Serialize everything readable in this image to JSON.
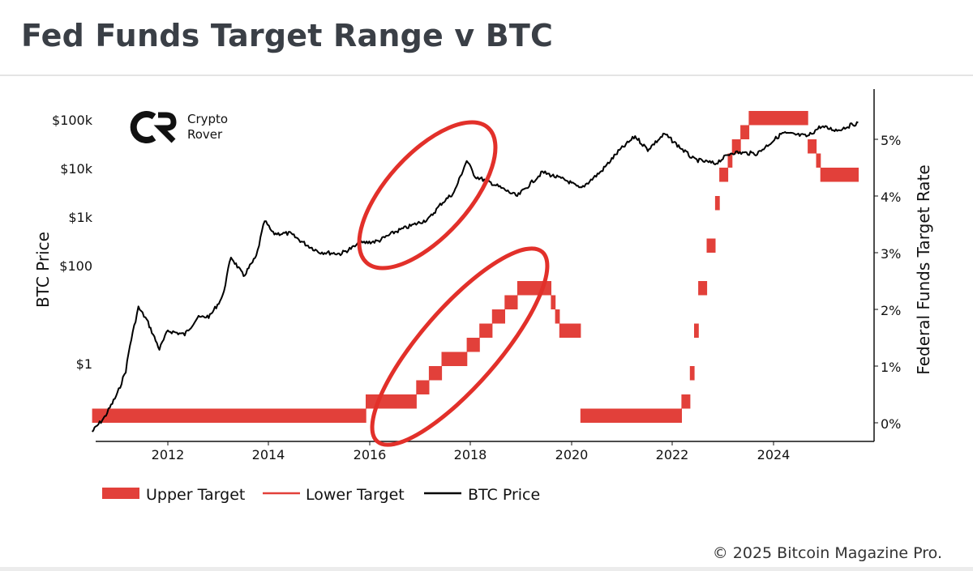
{
  "title": "Fed Funds Target Range v BTC",
  "copyright": "© 2025 Bitcoin Magazine Pro.",
  "logo": {
    "line1": "Crypto",
    "line2": "Rover",
    "icon": "crypto-rover-logo"
  },
  "colors": {
    "fed": "#e2403a",
    "btc": "#000000",
    "highlight": "#e2302a"
  },
  "chart_data": {
    "type": "line",
    "title": "Fed Funds Target Range v BTC",
    "xlabel": "",
    "x_ticks": [
      "2012",
      "2014",
      "2016",
      "2018",
      "2020",
      "2022",
      "2024"
    ],
    "left_axis": {
      "label": "BTC Price",
      "scale": "log",
      "ticks": [
        "$1",
        "$100",
        "$1k",
        "$10k",
        "$100k"
      ]
    },
    "right_axis": {
      "label": "Federal Funds Target Rate",
      "ylim": [
        0,
        5.5
      ],
      "ticks": [
        "0%",
        "1%",
        "2%",
        "3%",
        "4%",
        "5%"
      ]
    },
    "legend": [
      "Upper Target",
      "Lower Target",
      "BTC Price"
    ],
    "legend_position": "bottom",
    "series": [
      {
        "name": "Upper Target",
        "step": true,
        "points": [
          [
            "2010-07",
            0.25
          ],
          [
            "2015-12",
            0.5
          ],
          [
            "2016-12",
            0.75
          ],
          [
            "2017-03",
            1.0
          ],
          [
            "2017-06",
            1.25
          ],
          [
            "2017-12",
            1.5
          ],
          [
            "2018-03",
            1.75
          ],
          [
            "2018-06",
            2.0
          ],
          [
            "2018-09",
            2.25
          ],
          [
            "2018-12",
            2.5
          ],
          [
            "2019-08",
            2.25
          ],
          [
            "2019-09",
            2.0
          ],
          [
            "2019-10",
            1.75
          ],
          [
            "2020-03",
            0.25
          ],
          [
            "2022-03",
            0.5
          ],
          [
            "2022-05",
            1.0
          ],
          [
            "2022-06",
            1.75
          ],
          [
            "2022-07",
            2.5
          ],
          [
            "2022-09",
            3.25
          ],
          [
            "2022-11",
            4.0
          ],
          [
            "2022-12",
            4.5
          ],
          [
            "2023-02",
            4.75
          ],
          [
            "2023-03",
            5.0
          ],
          [
            "2023-05",
            5.25
          ],
          [
            "2023-07",
            5.5
          ],
          [
            "2024-09",
            5.0
          ],
          [
            "2024-11",
            4.75
          ],
          [
            "2024-12",
            4.5
          ],
          [
            "2025-09",
            4.5
          ]
        ]
      },
      {
        "name": "Lower Target",
        "step": true,
        "points": [
          [
            "2010-07",
            0.0
          ],
          [
            "2015-12",
            0.25
          ],
          [
            "2016-12",
            0.5
          ],
          [
            "2017-03",
            0.75
          ],
          [
            "2017-06",
            1.0
          ],
          [
            "2017-12",
            1.25
          ],
          [
            "2018-03",
            1.5
          ],
          [
            "2018-06",
            1.75
          ],
          [
            "2018-09",
            2.0
          ],
          [
            "2018-12",
            2.25
          ],
          [
            "2019-08",
            2.0
          ],
          [
            "2019-09",
            1.75
          ],
          [
            "2019-10",
            1.5
          ],
          [
            "2020-03",
            0.0
          ],
          [
            "2022-03",
            0.25
          ],
          [
            "2022-05",
            0.75
          ],
          [
            "2022-06",
            1.5
          ],
          [
            "2022-07",
            2.25
          ],
          [
            "2022-09",
            3.0
          ],
          [
            "2022-11",
            3.75
          ],
          [
            "2022-12",
            4.25
          ],
          [
            "2023-02",
            4.5
          ],
          [
            "2023-03",
            4.75
          ],
          [
            "2023-05",
            5.0
          ],
          [
            "2023-07",
            5.25
          ],
          [
            "2024-09",
            4.75
          ],
          [
            "2024-11",
            4.5
          ],
          [
            "2024-12",
            4.25
          ],
          [
            "2025-09",
            4.25
          ]
        ]
      },
      {
        "name": "BTC Price",
        "points": [
          [
            "2010-07",
            0.05
          ],
          [
            "2010-10",
            0.1
          ],
          [
            "2011-01",
            0.3
          ],
          [
            "2011-03",
            0.9
          ],
          [
            "2011-04",
            3
          ],
          [
            "2011-06",
            18
          ],
          [
            "2011-08",
            10
          ],
          [
            "2011-11",
            2.5
          ],
          [
            "2012-01",
            6
          ],
          [
            "2012-05",
            5
          ],
          [
            "2012-08",
            11
          ],
          [
            "2012-11",
            12
          ],
          [
            "2013-02",
            30
          ],
          [
            "2013-04",
            200
          ],
          [
            "2013-07",
            80
          ],
          [
            "2013-10",
            200
          ],
          [
            "2013-12",
            1100
          ],
          [
            "2014-02",
            600
          ],
          [
            "2014-06",
            600
          ],
          [
            "2014-10",
            350
          ],
          [
            "2015-01",
            250
          ],
          [
            "2015-06",
            230
          ],
          [
            "2015-11",
            380
          ],
          [
            "2016-03",
            420
          ],
          [
            "2016-07",
            650
          ],
          [
            "2016-12",
            950
          ],
          [
            "2017-03",
            1200
          ],
          [
            "2017-06",
            2500
          ],
          [
            "2017-09",
            4200
          ],
          [
            "2017-12",
            19000
          ],
          [
            "2018-02",
            9000
          ],
          [
            "2018-06",
            6500
          ],
          [
            "2018-12",
            3500
          ],
          [
            "2019-06",
            11000
          ],
          [
            "2019-12",
            7200
          ],
          [
            "2020-03",
            5000
          ],
          [
            "2020-08",
            11500
          ],
          [
            "2020-12",
            29000
          ],
          [
            "2021-04",
            60000
          ],
          [
            "2021-07",
            32000
          ],
          [
            "2021-11",
            67000
          ],
          [
            "2022-06",
            20000
          ],
          [
            "2022-11",
            16500
          ],
          [
            "2023-03",
            28000
          ],
          [
            "2023-09",
            26500
          ],
          [
            "2024-03",
            70000
          ],
          [
            "2024-09",
            60000
          ],
          [
            "2024-12",
            95000
          ],
          [
            "2025-04",
            80000
          ],
          [
            "2025-09",
            115000
          ]
        ]
      }
    ],
    "annotations": [
      "red ellipse around BTC price 2016–2018",
      "red ellipse around rate hikes 2016–2019"
    ]
  }
}
